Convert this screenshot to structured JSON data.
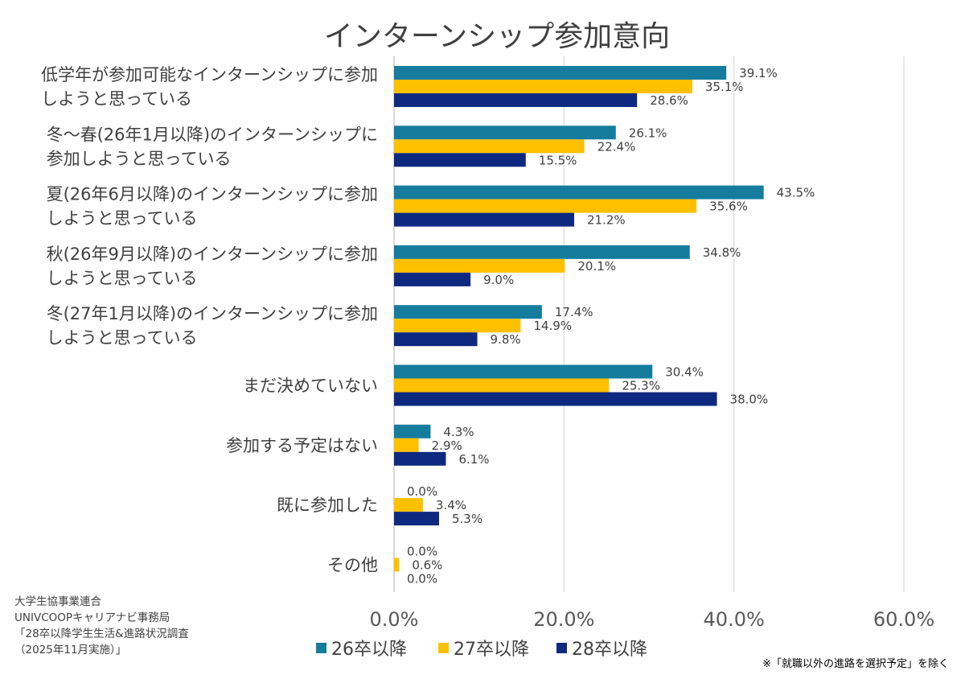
{
  "chart_data": {
    "type": "bar",
    "orientation": "horizontal",
    "title": "インターンシップ参加意向",
    "categories": [
      [
        "低学年が参加可能なインターンシップに参加",
        "しようと思っている"
      ],
      [
        "冬～春(26年1月以降)のインターンシップに",
        "参加しようと思っている"
      ],
      [
        "夏(26年6月以降)のインターンシップに参加",
        "しようと思っている"
      ],
      [
        "秋(26年9月以降)のインターンシップに参加",
        "しようと思っている"
      ],
      [
        "冬(27年1月以降)のインターンシップに参加",
        "しようと思っている"
      ],
      [
        "まだ決めていない"
      ],
      [
        "参加する予定はない"
      ],
      [
        "既に参加した"
      ],
      [
        "その他"
      ]
    ],
    "series": [
      {
        "name": "26卒以降",
        "color": "#157C9E",
        "values": [
          39.1,
          26.1,
          43.5,
          34.8,
          17.4,
          30.4,
          4.3,
          0.0,
          0.0
        ]
      },
      {
        "name": "27卒以降",
        "color": "#FFC000",
        "values": [
          35.1,
          22.4,
          35.6,
          20.1,
          14.9,
          25.3,
          2.9,
          3.4,
          0.6
        ]
      },
      {
        "name": "28卒以降",
        "color": "#0E2A80",
        "values": [
          28.6,
          15.5,
          21.2,
          9.0,
          9.8,
          38.0,
          6.1,
          5.3,
          0.0
        ]
      }
    ],
    "xlim": [
      0,
      60
    ],
    "xticks": [
      "0.0%",
      "20.0%",
      "40.0%",
      "60.0%"
    ],
    "grid": true,
    "legend": "bottom",
    "value_suffix": "%"
  },
  "source": [
    "大学生協事業連合",
    "UNIVCOOPキャリアナビ事務局",
    "「28卒以降学生生活&進路状況調査",
    "（2025年11月実施）」"
  ],
  "note": "※「就職以外の進路を選択予定」を除く"
}
